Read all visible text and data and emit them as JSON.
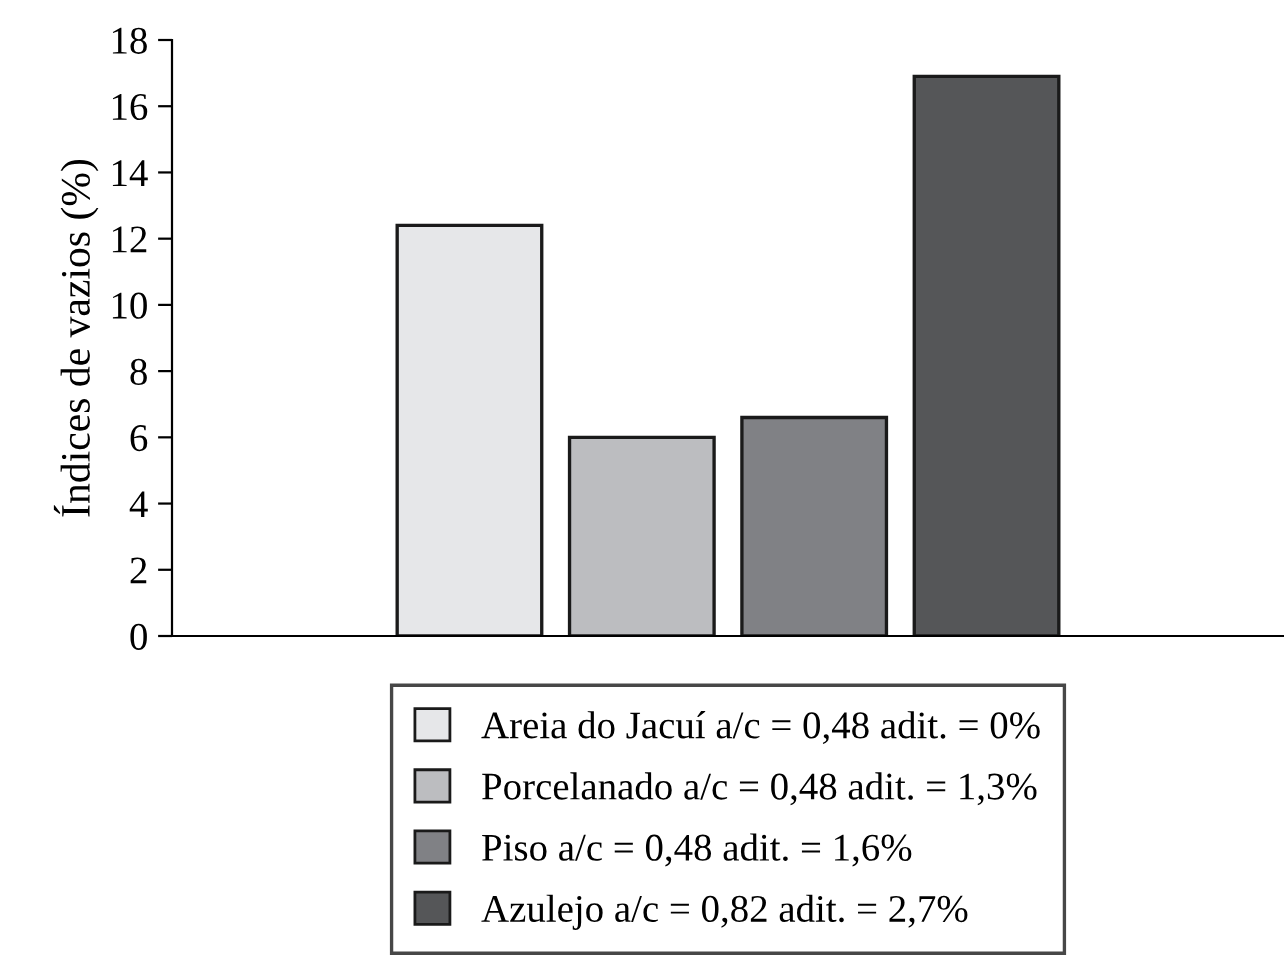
{
  "chart_data": {
    "type": "bar",
    "ylabel": "Índices de vazios (%)",
    "categories": [
      null
    ],
    "series": [
      {
        "name": "Areia do Jacuí a/c = 0,48 adit. = 0%",
        "color": "#e6e7e9",
        "values": [
          12.4
        ]
      },
      {
        "name": "Porcelanado a/c = 0,48 adit. = 1,3%",
        "color": "#bcbdc0",
        "values": [
          6.0
        ]
      },
      {
        "name": "Piso a/c = 0,48 adit. = 1,6%",
        "color": "#808185",
        "values": [
          6.6
        ]
      },
      {
        "name": "Azulejo a/c = 0,82 adit. = 2,7%",
        "color": "#555658",
        "values": [
          16.9
        ]
      }
    ],
    "ylim": [
      0,
      18
    ],
    "yticks": [
      0,
      2,
      4,
      6,
      8,
      10,
      12,
      14,
      16,
      18
    ],
    "grid": false,
    "legend": "bottom"
  }
}
